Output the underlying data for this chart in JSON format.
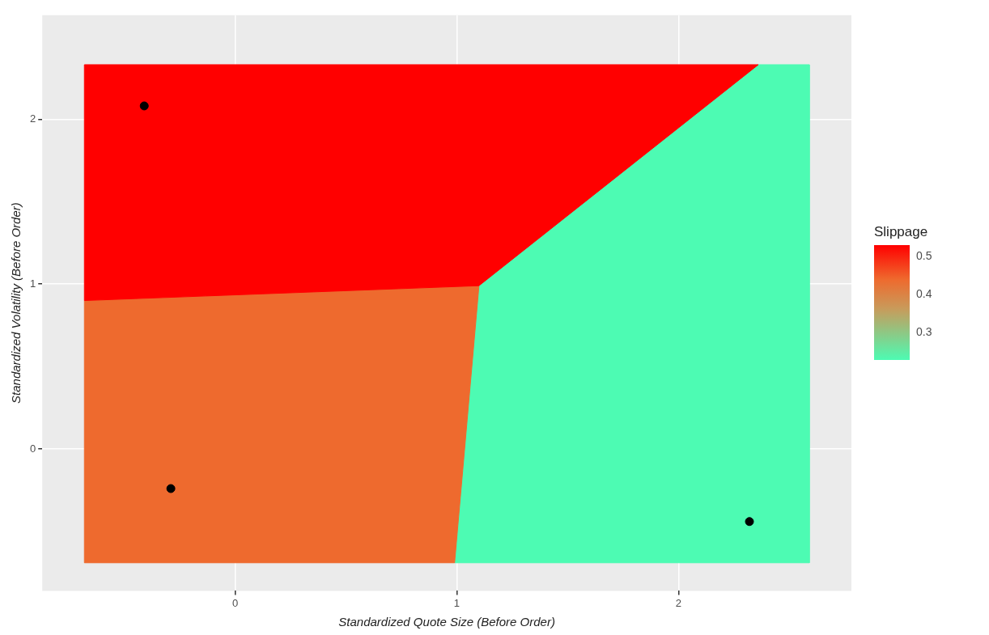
{
  "chart_data": {
    "type": "scatter",
    "xlabel": "Standardized Quote Size (Before Order)",
    "ylabel": "Standardized Volatility (Before Order)",
    "clabel": "Slippage",
    "clim": [
      0.227,
      0.528
    ],
    "cticks": [
      0.3,
      0.4,
      0.5
    ],
    "xlim": [
      -0.87,
      2.78
    ],
    "ylim": [
      -0.86,
      2.63
    ],
    "xticks": [
      0,
      1,
      2
    ],
    "yticks": [
      0,
      1,
      2
    ],
    "grid": true,
    "legend": false,
    "series": [
      {
        "type": "area",
        "color": "#ff0000",
        "x": [
          -0.68,
          2.36,
          1.1,
          -0.68
        ],
        "values": [
          2.33,
          2.33,
          0.99,
          0.9
        ]
      },
      {
        "type": "area",
        "color": "#ee6a2e",
        "x": [
          -0.68,
          1.1,
          0.99,
          -0.68
        ],
        "values": [
          0.9,
          0.99,
          -0.69,
          -0.69
        ]
      },
      {
        "type": "area",
        "color": "#4dfbb3",
        "x": [
          2.36,
          2.59,
          2.59,
          0.99,
          1.1
        ],
        "values": [
          2.33,
          2.33,
          -0.69,
          -0.69,
          0.99
        ]
      },
      {
        "marker": "circle",
        "color": "#000000",
        "x": [
          -0.41,
          -0.29,
          2.32
        ],
        "values": [
          2.08,
          -0.24,
          -0.44
        ]
      }
    ]
  }
}
